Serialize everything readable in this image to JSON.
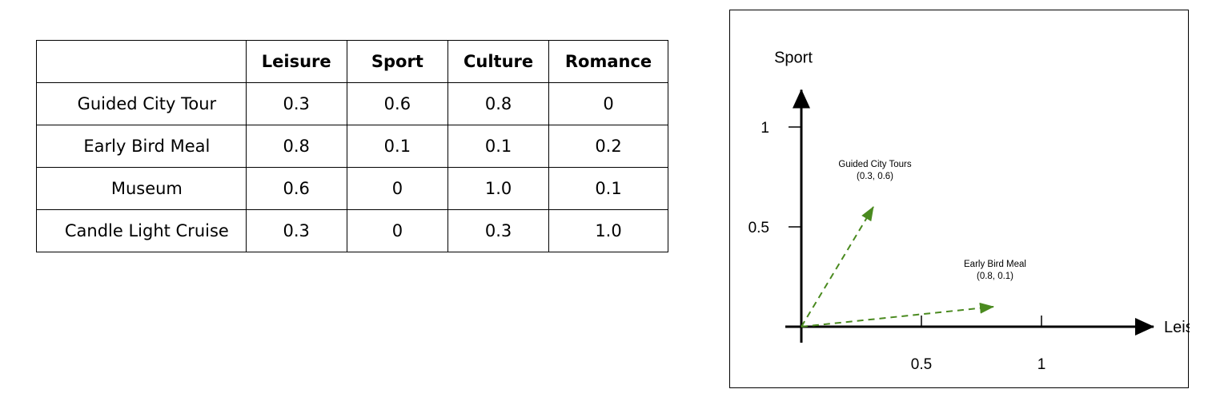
{
  "table": {
    "columns": [
      "",
      "Leisure",
      "Sport",
      "Culture",
      "Romance"
    ],
    "rows": [
      {
        "label": "Guided City Tour",
        "values": [
          "0.3",
          "0.6",
          "0.8",
          "0"
        ]
      },
      {
        "label": "Early Bird Meal",
        "values": [
          "0.8",
          "0.1",
          "0.1",
          "0.2"
        ]
      },
      {
        "label": "Museum",
        "values": [
          "0.6",
          "0",
          "1.0",
          "0.1"
        ]
      },
      {
        "label": "Candle Light Cruise",
        "values": [
          "0.3",
          "0",
          "0.3",
          "1.0"
        ]
      }
    ]
  },
  "chart_data": {
    "type": "vector",
    "xlabel": "Leisure",
    "ylabel": "Sport",
    "xlim": [
      0,
      1.3
    ],
    "ylim": [
      0,
      1.25
    ],
    "xticks": [
      {
        "value": 0.5,
        "label": "0.5"
      },
      {
        "value": 1,
        "label": "1"
      }
    ],
    "yticks": [
      {
        "value": 0.5,
        "label": "0.5"
      },
      {
        "value": 1,
        "label": "1"
      }
    ],
    "color": "#4a8a1f",
    "vectors": [
      {
        "name": "Guided City Tours",
        "coord_label": "(0.3, 0.6)",
        "x": 0.3,
        "y": 0.6
      },
      {
        "name": "Early Bird Meal",
        "coord_label": "(0.8, 0.1)",
        "x": 0.8,
        "y": 0.1
      }
    ]
  }
}
